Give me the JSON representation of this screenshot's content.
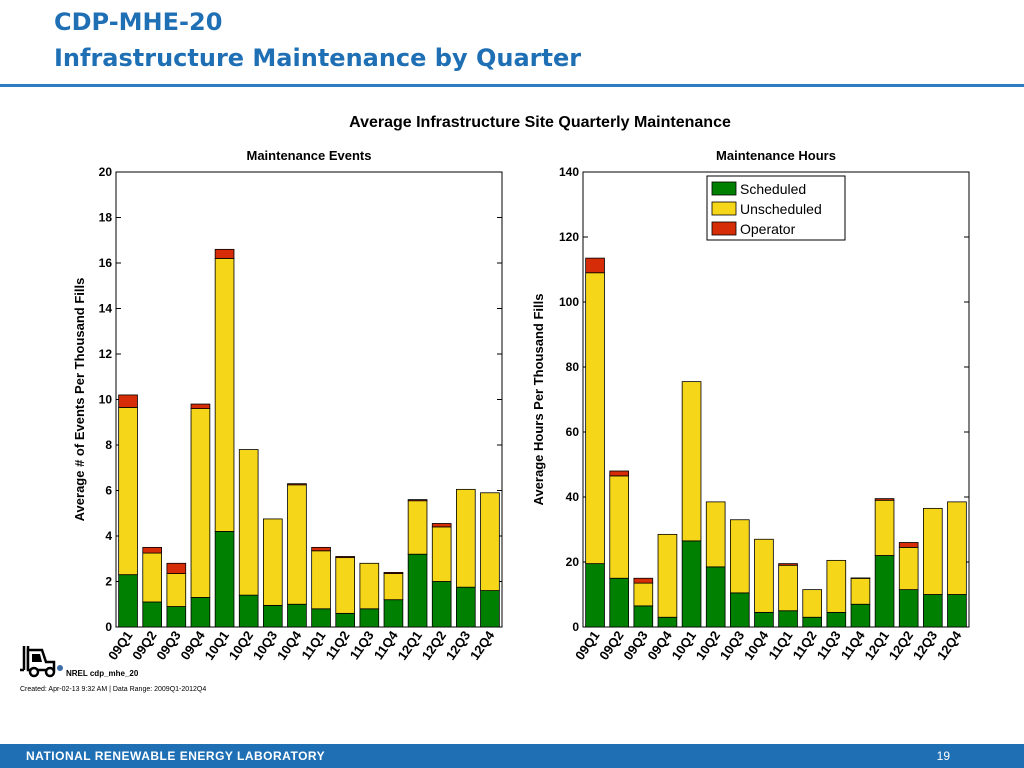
{
  "header": {
    "title_line1": "CDP-MHE-20",
    "title_line2": "Infrastructure Maintenance by Quarter"
  },
  "chart_title": "Average Infrastructure Site Quarterly Maintenance",
  "colors": {
    "scheduled": "#008000",
    "unscheduled": "#f5d619",
    "operator": "#d62d08"
  },
  "chart_data": [
    {
      "type": "bar",
      "stacked": true,
      "title": "Maintenance Events",
      "ylabel": "Average # of Events Per Thousand Fills",
      "xlabel": "",
      "ylim": [
        0,
        20
      ],
      "yticks": [
        0,
        2,
        4,
        6,
        8,
        10,
        12,
        14,
        16,
        18,
        20
      ],
      "categories": [
        "09Q1",
        "09Q2",
        "09Q3",
        "09Q4",
        "10Q1",
        "10Q2",
        "10Q3",
        "10Q4",
        "11Q1",
        "11Q2",
        "11Q3",
        "11Q4",
        "12Q1",
        "12Q2",
        "12Q3",
        "12Q4"
      ],
      "series": [
        {
          "name": "Scheduled",
          "values": [
            2.3,
            1.1,
            0.9,
            1.3,
            4.2,
            1.4,
            0.95,
            1.0,
            0.8,
            0.6,
            0.8,
            1.2,
            3.2,
            2.0,
            1.75,
            1.6
          ]
        },
        {
          "name": "Unscheduled",
          "values": [
            7.35,
            2.15,
            1.45,
            8.3,
            12.0,
            6.4,
            3.8,
            5.25,
            2.55,
            2.45,
            2.0,
            1.15,
            2.35,
            2.4,
            4.3,
            4.3
          ]
        },
        {
          "name": "Operator",
          "values": [
            0.55,
            0.25,
            0.45,
            0.2,
            0.4,
            0,
            0,
            0.05,
            0.15,
            0.05,
            0,
            0.05,
            0.05,
            0.15,
            0,
            0
          ]
        }
      ]
    },
    {
      "type": "bar",
      "stacked": true,
      "title": "Maintenance Hours",
      "ylabel": "Average Hours Per Thousand Fills",
      "xlabel": "",
      "ylim": [
        0,
        140
      ],
      "yticks": [
        0,
        20,
        40,
        60,
        80,
        100,
        120,
        140
      ],
      "legend": "top-right",
      "categories": [
        "09Q1",
        "09Q2",
        "09Q3",
        "09Q4",
        "10Q1",
        "10Q2",
        "10Q3",
        "10Q4",
        "11Q1",
        "11Q2",
        "11Q3",
        "11Q4",
        "12Q1",
        "12Q2",
        "12Q3",
        "12Q4"
      ],
      "series": [
        {
          "name": "Scheduled",
          "values": [
            19.5,
            15.0,
            6.5,
            3.0,
            26.5,
            18.5,
            10.5,
            4.5,
            5.0,
            3.0,
            4.5,
            7.0,
            22.0,
            11.5,
            10.0,
            10.0
          ]
        },
        {
          "name": "Unscheduled",
          "values": [
            89.5,
            31.5,
            7.0,
            25.5,
            49.0,
            20.0,
            22.5,
            22.5,
            14.0,
            8.5,
            16.0,
            8.0,
            17.0,
            13.0,
            26.5,
            28.5
          ]
        },
        {
          "name": "Operator",
          "values": [
            4.5,
            1.5,
            1.5,
            0,
            0,
            0,
            0,
            0,
            0.5,
            0,
            0,
            0.1,
            0.5,
            1.5,
            0,
            0
          ]
        }
      ]
    }
  ],
  "footer": {
    "nrel_id": "NREL cdp_mhe_20",
    "created": "Created: Apr-02-13  9:32 AM | Data Range: 2009Q1-2012Q4",
    "org": "NATIONAL RENEWABLE ENERGY LABORATORY",
    "page": "19"
  }
}
